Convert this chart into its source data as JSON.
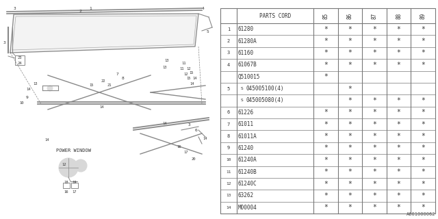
{
  "diagram_code": "A601000062",
  "rows": [
    {
      "num": "1",
      "code": "61280",
      "marks": [
        true,
        true,
        true,
        true,
        true
      ]
    },
    {
      "num": "2",
      "code": "61280A",
      "marks": [
        true,
        true,
        true,
        true,
        true
      ]
    },
    {
      "num": "3",
      "code": "61160",
      "marks": [
        true,
        true,
        true,
        true,
        true
      ]
    },
    {
      "num": "4",
      "code": "61067B",
      "marks": [
        true,
        true,
        true,
        true,
        true
      ]
    },
    {
      "num": "",
      "code": "Q510015",
      "marks": [
        true,
        false,
        false,
        false,
        false
      ]
    },
    {
      "num": "5",
      "code": "045005100(4)",
      "marks": [
        false,
        true,
        false,
        false,
        false
      ],
      "circled_s": true
    },
    {
      "num": "",
      "code": "045005080(4)",
      "marks": [
        false,
        true,
        true,
        true,
        true
      ],
      "circled_s": true
    },
    {
      "num": "6",
      "code": "61226",
      "marks": [
        true,
        true,
        true,
        true,
        true
      ]
    },
    {
      "num": "7",
      "code": "61011",
      "marks": [
        true,
        true,
        true,
        true,
        true
      ]
    },
    {
      "num": "8",
      "code": "61011A",
      "marks": [
        true,
        true,
        true,
        true,
        true
      ]
    },
    {
      "num": "9",
      "code": "61240",
      "marks": [
        true,
        true,
        true,
        true,
        true
      ]
    },
    {
      "num": "10",
      "code": "61240A",
      "marks": [
        true,
        true,
        true,
        true,
        true
      ]
    },
    {
      "num": "11",
      "code": "61240B",
      "marks": [
        true,
        true,
        true,
        true,
        true
      ]
    },
    {
      "num": "12",
      "code": "61240C",
      "marks": [
        true,
        true,
        true,
        true,
        true
      ]
    },
    {
      "num": "13",
      "code": "63262",
      "marks": [
        true,
        true,
        true,
        true,
        true
      ]
    },
    {
      "num": "14",
      "code": "M00004",
      "marks": [
        true,
        true,
        true,
        true,
        true
      ]
    }
  ],
  "year_labels": [
    "85",
    "86",
    "87",
    "88",
    "89"
  ],
  "bg_color": "#ffffff",
  "lc": "#777777",
  "tc": "#333333"
}
